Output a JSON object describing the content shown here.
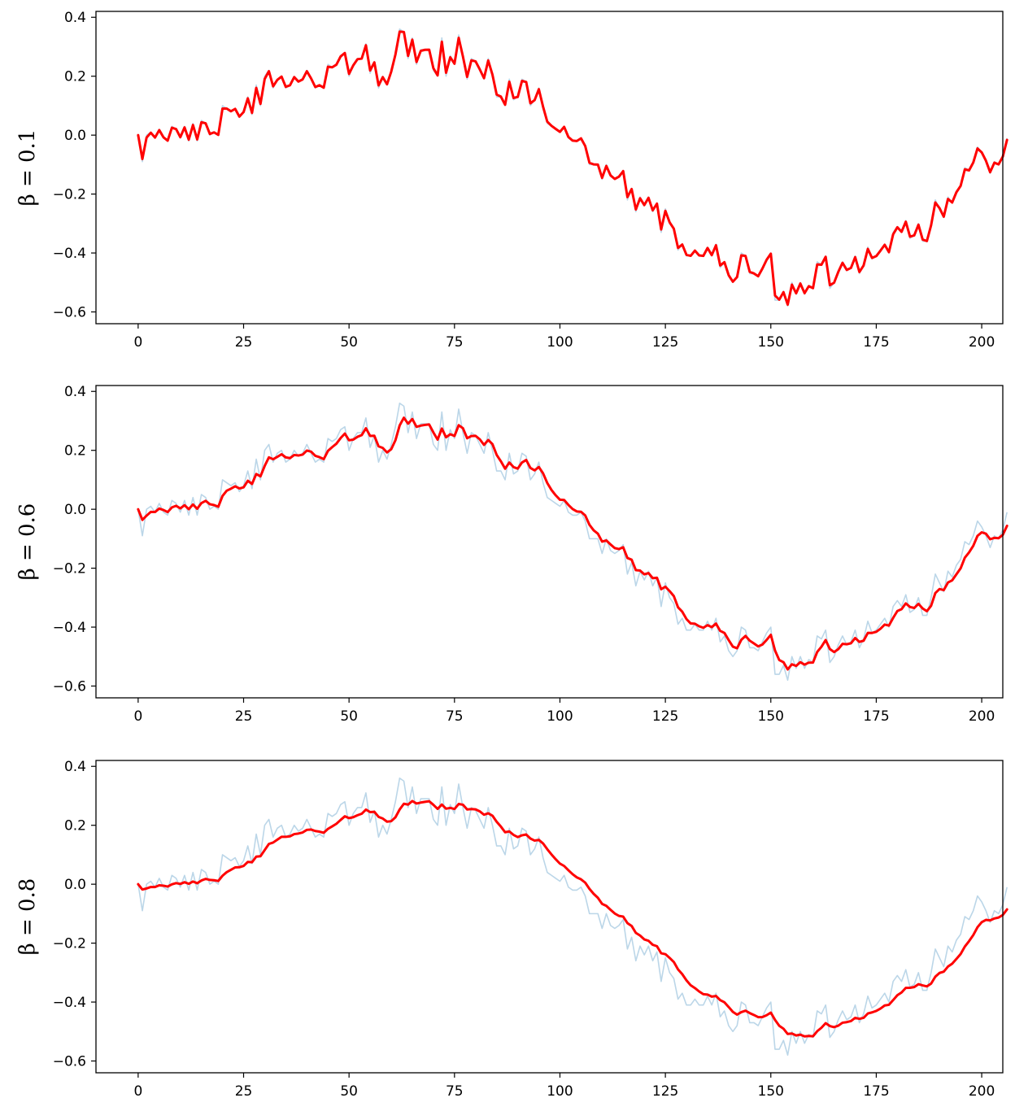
{
  "chart_data": [
    {
      "type": "line",
      "ylabel": "β = 0.1",
      "beta": 0.1,
      "xlim": [
        -10,
        205
      ],
      "ylim": [
        -0.64,
        0.42
      ],
      "xticks": [
        0,
        25,
        50,
        75,
        100,
        125,
        150,
        175,
        200
      ],
      "yticks": [
        -0.6,
        -0.4,
        -0.2,
        0.0,
        0.2,
        0.4
      ],
      "xtick_labels": [
        "0",
        "25",
        "50",
        "75",
        "100",
        "125",
        "150",
        "175",
        "200"
      ],
      "ytick_labels": [
        "−0.6",
        "−0.4",
        "−0.2",
        "0.0",
        "0.2",
        "0.4"
      ],
      "grid": false,
      "series": [
        {
          "role": "raw",
          "color": "#1f77b4",
          "alpha": 0.3,
          "values": "raw"
        },
        {
          "role": "smoothed",
          "color": "#ff0000"
        }
      ]
    },
    {
      "type": "line",
      "ylabel": "β = 0.6",
      "beta": 0.6,
      "xlim": [
        -10,
        205
      ],
      "ylim": [
        -0.64,
        0.42
      ],
      "xticks": [
        0,
        25,
        50,
        75,
        100,
        125,
        150,
        175,
        200
      ],
      "yticks": [
        -0.6,
        -0.4,
        -0.2,
        0.0,
        0.2,
        0.4
      ],
      "xtick_labels": [
        "0",
        "25",
        "50",
        "75",
        "100",
        "125",
        "150",
        "175",
        "200"
      ],
      "ytick_labels": [
        "−0.6",
        "−0.4",
        "−0.2",
        "0.0",
        "0.2",
        "0.4"
      ],
      "grid": false,
      "series": [
        {
          "role": "raw",
          "color": "#1f77b4",
          "alpha": 0.3,
          "values": "raw"
        },
        {
          "role": "smoothed",
          "color": "#ff0000"
        }
      ]
    },
    {
      "type": "line",
      "ylabel": "β = 0.8",
      "beta": 0.8,
      "xlim": [
        -10,
        205
      ],
      "ylim": [
        -0.64,
        0.42
      ],
      "xticks": [
        0,
        25,
        50,
        75,
        100,
        125,
        150,
        175,
        200
      ],
      "yticks": [
        -0.6,
        -0.4,
        -0.2,
        0.0,
        0.2,
        0.4
      ],
      "xtick_labels": [
        "0",
        "25",
        "50",
        "75",
        "100",
        "125",
        "150",
        "175",
        "200"
      ],
      "ytick_labels": [
        "−0.6",
        "−0.4",
        "−0.2",
        "0.0",
        "0.2",
        "0.4"
      ],
      "grid": false,
      "series": [
        {
          "role": "raw",
          "color": "#1f77b4",
          "alpha": 0.3,
          "values": "raw"
        },
        {
          "role": "smoothed",
          "color": "#ff0000"
        }
      ]
    }
  ],
  "raw": [
    0.0,
    -0.09,
    0.0,
    0.01,
    -0.01,
    0.02,
    -0.01,
    -0.02,
    0.03,
    0.02,
    -0.01,
    0.03,
    -0.02,
    0.04,
    -0.02,
    0.05,
    0.04,
    0.0,
    0.01,
    0.0,
    0.1,
    0.09,
    0.08,
    0.09,
    0.06,
    0.08,
    0.13,
    0.07,
    0.17,
    0.1,
    0.2,
    0.22,
    0.16,
    0.19,
    0.2,
    0.16,
    0.17,
    0.2,
    0.18,
    0.19,
    0.22,
    0.19,
    0.16,
    0.17,
    0.16,
    0.24,
    0.23,
    0.24,
    0.27,
    0.28,
    0.2,
    0.24,
    0.26,
    0.26,
    0.31,
    0.21,
    0.25,
    0.16,
    0.2,
    0.17,
    0.22,
    0.28,
    0.36,
    0.35,
    0.26,
    0.33,
    0.24,
    0.29,
    0.29,
    0.29,
    0.22,
    0.2,
    0.33,
    0.2,
    0.27,
    0.24,
    0.34,
    0.26,
    0.19,
    0.26,
    0.25,
    0.22,
    0.19,
    0.26,
    0.2,
    0.13,
    0.13,
    0.1,
    0.19,
    0.12,
    0.13,
    0.19,
    0.18,
    0.1,
    0.12,
    0.16,
    0.09,
    0.04,
    0.03,
    0.02,
    0.01,
    0.03,
    -0.01,
    -0.02,
    -0.02,
    -0.01,
    -0.04,
    -0.1,
    -0.1,
    -0.1,
    -0.15,
    -0.1,
    -0.14,
    -0.15,
    -0.14,
    -0.12,
    -0.22,
    -0.18,
    -0.26,
    -0.21,
    -0.24,
    -0.21,
    -0.26,
    -0.23,
    -0.33,
    -0.25,
    -0.3,
    -0.32,
    -0.39,
    -0.37,
    -0.41,
    -0.41,
    -0.39,
    -0.41,
    -0.41,
    -0.38,
    -0.41,
    -0.37,
    -0.45,
    -0.43,
    -0.48,
    -0.5,
    -0.48,
    -0.4,
    -0.41,
    -0.47,
    -0.47,
    -0.48,
    -0.45,
    -0.42,
    -0.4,
    -0.56,
    -0.56,
    -0.53,
    -0.58,
    -0.5,
    -0.54,
    -0.5,
    -0.54,
    -0.51,
    -0.52,
    -0.43,
    -0.44,
    -0.41,
    -0.52,
    -0.5,
    -0.46,
    -0.43,
    -0.46,
    -0.45,
    -0.41,
    -0.47,
    -0.44,
    -0.38,
    -0.42,
    -0.41,
    -0.39,
    -0.37,
    -0.4,
    -0.33,
    -0.31,
    -0.33,
    -0.29,
    -0.35,
    -0.34,
    -0.3,
    -0.36,
    -0.36,
    -0.3,
    -0.22,
    -0.25,
    -0.28,
    -0.21,
    -0.23,
    -0.19,
    -0.17,
    -0.11,
    -0.12,
    -0.09,
    -0.04,
    -0.06,
    -0.09,
    -0.13,
    -0.09,
    -0.1,
    -0.07,
    -0.01
  ]
}
